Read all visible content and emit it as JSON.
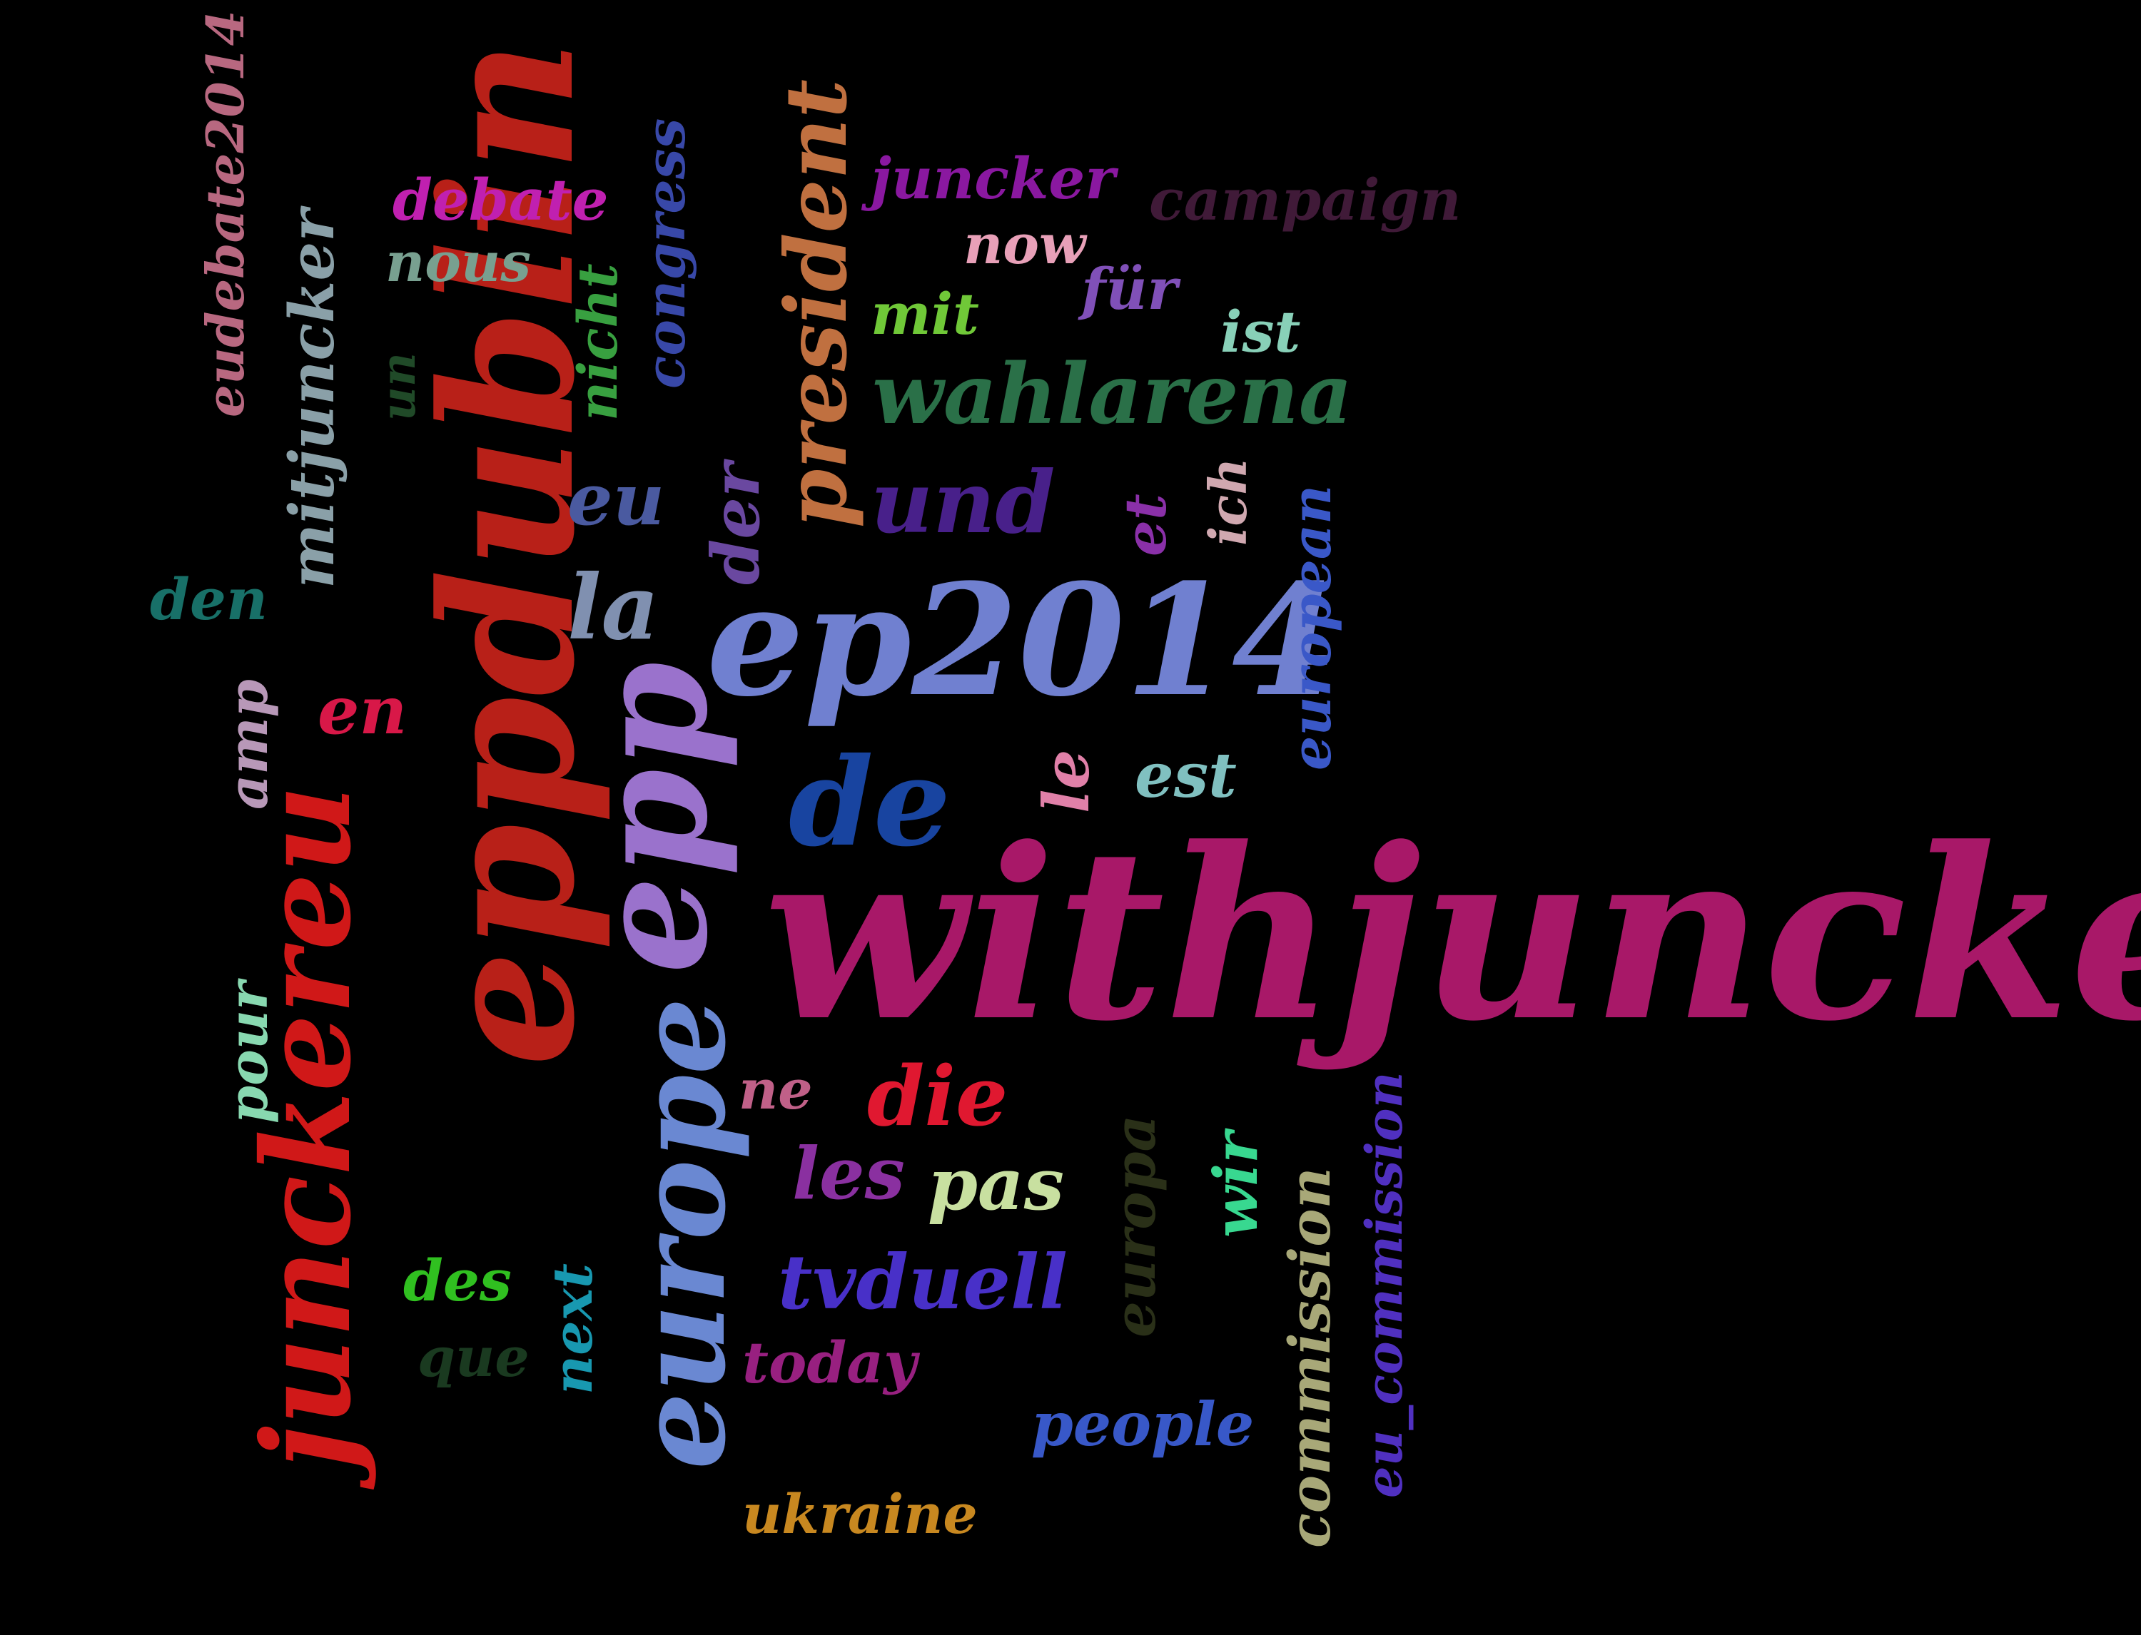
{
  "words": [
    {
      "id": "withjuncker",
      "text": "withjuncker",
      "color": "#a81868"
    },
    {
      "id": "eppdublin",
      "text": "eppdublin",
      "color": "#b82018"
    },
    {
      "id": "epp",
      "text": "epp",
      "color": "#9a72cc"
    },
    {
      "id": "ep2014",
      "text": "ep2014",
      "color": "#7080d0"
    },
    {
      "id": "junckereu",
      "text": "junckereu",
      "color": "#d01818"
    },
    {
      "id": "europe",
      "text": "europe",
      "color": "#6a88d2"
    },
    {
      "id": "de",
      "text": "de",
      "color": "#1844a0"
    },
    {
      "id": "president",
      "text": "president",
      "color": "#c07040"
    },
    {
      "id": "wahlarena",
      "text": "wahlarena",
      "color": "#2a7048"
    },
    {
      "id": "und",
      "text": "und",
      "color": "#48208a"
    },
    {
      "id": "la",
      "text": "la",
      "color": "#8090b0"
    },
    {
      "id": "die",
      "text": "die",
      "color": "#e01830"
    },
    {
      "id": "tvduell",
      "text": "tvduell",
      "color": "#4830c8"
    },
    {
      "id": "les",
      "text": "les",
      "color": "#8a30a0"
    },
    {
      "id": "pas",
      "text": "pas",
      "color": "#c8e0a0"
    },
    {
      "id": "congress",
      "text": "congress",
      "color": "#3848a8"
    },
    {
      "id": "nicht",
      "text": "nicht",
      "color": "#38a040"
    },
    {
      "id": "mitjuncker",
      "text": "mitjuncker",
      "color": "#8aa0a8"
    },
    {
      "id": "eudebate2014",
      "text": "eudebate2014",
      "color": "#b86880"
    },
    {
      "id": "debate",
      "text": "debate",
      "color": "#c020b0"
    },
    {
      "id": "nous",
      "text": "nous",
      "color": "#78a090"
    },
    {
      "id": "un",
      "text": "un",
      "color": "#204a28"
    },
    {
      "id": "juncker",
      "text": "juncker",
      "color": "#8a18a0"
    },
    {
      "id": "campaign",
      "text": "campaign",
      "color": "#401a38"
    },
    {
      "id": "now",
      "text": "now",
      "color": "#e8a0b8"
    },
    {
      "id": "fur",
      "text": "für",
      "color": "#8050b8"
    },
    {
      "id": "mit",
      "text": "mit",
      "color": "#70c838"
    },
    {
      "id": "ist",
      "text": "ist",
      "color": "#88d0b8"
    },
    {
      "id": "eu",
      "text": "eu",
      "color": "#4a5aa0"
    },
    {
      "id": "der",
      "text": "der",
      "color": "#6a48a0"
    },
    {
      "id": "et",
      "text": "et",
      "color": "#8a30a8"
    },
    {
      "id": "ich",
      "text": "ich",
      "color": "#d0a8b0"
    },
    {
      "id": "european",
      "text": "european",
      "color": "#3a58c8"
    },
    {
      "id": "den",
      "text": "den",
      "color": "#187068"
    },
    {
      "id": "amp",
      "text": "amp",
      "color": "#b898b8"
    },
    {
      "id": "en",
      "text": "en",
      "color": "#d81848"
    },
    {
      "id": "le",
      "text": "le",
      "color": "#e080a8"
    },
    {
      "id": "est",
      "text": "est",
      "color": "#80c0c0"
    },
    {
      "id": "pour",
      "text": "pour",
      "color": "#88d8b0"
    },
    {
      "id": "ne",
      "text": "ne",
      "color": "#c06088"
    },
    {
      "id": "europa",
      "text": "europa",
      "color": "#2a3018"
    },
    {
      "id": "wir",
      "text": "wir",
      "color": "#38d890"
    },
    {
      "id": "commission",
      "text": "commission",
      "color": "#a8a878"
    },
    {
      "id": "eu_commission",
      "text": "eu_commission",
      "color": "#5030c0"
    },
    {
      "id": "des",
      "text": "des",
      "color": "#30c020"
    },
    {
      "id": "next",
      "text": "next",
      "color": "#1898b0"
    },
    {
      "id": "que",
      "text": "que",
      "color": "#1a3a20"
    },
    {
      "id": "today",
      "text": "today",
      "color": "#982080"
    },
    {
      "id": "people",
      "text": "people",
      "color": "#3858c8"
    },
    {
      "id": "ukraine",
      "text": "ukraine",
      "color": "#c88820"
    }
  ]
}
